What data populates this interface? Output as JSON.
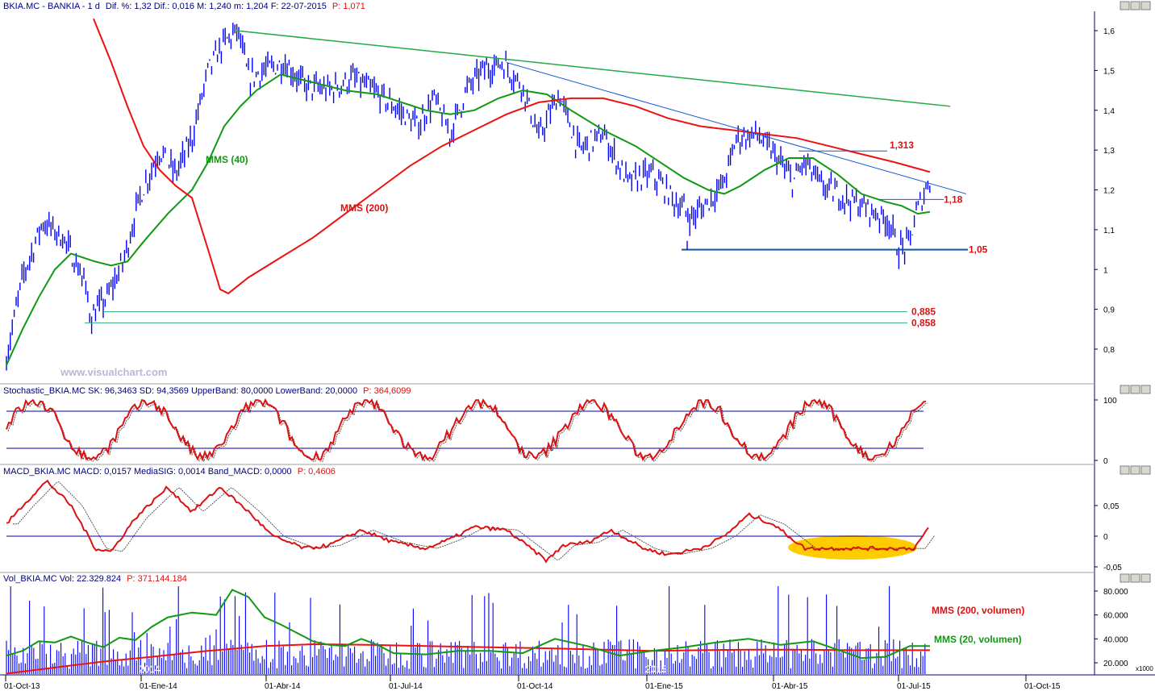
{
  "watermark": "www.visualchart.com",
  "colors": {
    "price": "#0000ff",
    "mms40": "#119911",
    "mms200": "#ee1111",
    "trend_green": "#22aa44",
    "trend_blue": "#1155dd",
    "level_blue": "#1155aa",
    "level_teal": "#33aa88",
    "stoch": "#dd1111",
    "macd": "#dd1111",
    "volume": "#0000ff",
    "highlight": "#ffcc00"
  },
  "panels": {
    "price": {
      "header_symbol": "BKIA.MC - BANKIA - 1 d",
      "header_stats": "Dif. %: 1,32  Dif.: 0,016  M: 1,240  m: 1,204  F: 22-07-2015",
      "header_p": "P: 1,071",
      "mms40_label": "MMS (40)",
      "mms200_label": "MMS (200)"
    },
    "stochastic": {
      "header": "Stochastic_BKIA.MC SK: 96,3463 SD: 94,3569 UpperBand: 80,0000 LowerBand: 20,0000",
      "header_p": "P: 364,6099"
    },
    "macd": {
      "header": "MACD_BKIA.MC MACD: 0,0157 MediaSIG: 0,0014 Band_MACD: 0,0000",
      "header_p": "P: 0,4606"
    },
    "volume": {
      "header": "Vol_BKIA.MC Vol: 22.329.824",
      "header_p": "P: 371.144.184",
      "mms200_label": "MMS (200, volumen)",
      "mms20_label": "MMS (20, volumen)",
      "multiplier": "x1000"
    }
  },
  "chart_data": [
    {
      "type": "line",
      "panel": "price",
      "x_tick_labels": [
        "01-Oct-13",
        "01-Ene-14",
        "01-Abr-14",
        "01-Jul-14",
        "01-Oct-14",
        "01-Ene-15",
        "01-Abr-15",
        "01-Jul-15",
        "01-Oct-15"
      ],
      "year_labels": [
        "2014",
        "2015"
      ],
      "y_tick_labels": [
        "1,6",
        "1,5",
        "1,4",
        "1,3",
        "1,2",
        "1,1",
        "1",
        "0,9",
        "0,8"
      ],
      "ylim": [
        0.72,
        1.65
      ],
      "series": [
        {
          "name": "MMS (40)",
          "values": [
            [
              0,
              0.76
            ],
            [
              20,
              0.85
            ],
            [
              40,
              0.93
            ],
            [
              60,
              1.0
            ],
            [
              80,
              1.04
            ],
            [
              110,
              1.02
            ],
            [
              130,
              1.01
            ],
            [
              150,
              1.02
            ],
            [
              170,
              1.07
            ],
            [
              200,
              1.14
            ],
            [
              230,
              1.2
            ],
            [
              250,
              1.27
            ],
            [
              270,
              1.36
            ],
            [
              290,
              1.41
            ],
            [
              310,
              1.45
            ],
            [
              340,
              1.49
            ],
            [
              380,
              1.47
            ],
            [
              420,
              1.45
            ],
            [
              460,
              1.44
            ],
            [
              490,
              1.42
            ],
            [
              520,
              1.4
            ],
            [
              550,
              1.39
            ],
            [
              580,
              1.4
            ],
            [
              610,
              1.43
            ],
            [
              640,
              1.45
            ],
            [
              670,
              1.44
            ],
            [
              700,
              1.4
            ],
            [
              740,
              1.35
            ],
            [
              780,
              1.31
            ],
            [
              810,
              1.27
            ],
            [
              840,
              1.23
            ],
            [
              870,
              1.2
            ],
            [
              890,
              1.19
            ],
            [
              910,
              1.21
            ],
            [
              940,
              1.25
            ],
            [
              970,
              1.28
            ],
            [
              1000,
              1.28
            ],
            [
              1030,
              1.24
            ],
            [
              1060,
              1.19
            ],
            [
              1090,
              1.17
            ],
            [
              1110,
              1.16
            ],
            [
              1130,
              1.14
            ],
            [
              1145,
              1.145
            ]
          ]
        },
        {
          "name": "MMS (200)",
          "values": [
            [
              108,
              1.63
            ],
            [
              130,
              1.52
            ],
            [
              150,
              1.41
            ],
            [
              170,
              1.31
            ],
            [
              190,
              1.25
            ],
            [
              210,
              1.21
            ],
            [
              230,
              1.18
            ],
            [
              250,
              1.05
            ],
            [
              265,
              0.95
            ],
            [
              275,
              0.94
            ],
            [
              300,
              0.98
            ],
            [
              340,
              1.03
            ],
            [
              380,
              1.08
            ],
            [
              420,
              1.14
            ],
            [
              460,
              1.2
            ],
            [
              500,
              1.26
            ],
            [
              540,
              1.31
            ],
            [
              580,
              1.35
            ],
            [
              620,
              1.39
            ],
            [
              660,
              1.42
            ],
            [
              700,
              1.43
            ],
            [
              740,
              1.43
            ],
            [
              780,
              1.41
            ],
            [
              820,
              1.38
            ],
            [
              860,
              1.36
            ],
            [
              900,
              1.35
            ],
            [
              940,
              1.34
            ],
            [
              980,
              1.33
            ],
            [
              1020,
              1.31
            ],
            [
              1060,
              1.29
            ],
            [
              1100,
              1.27
            ],
            [
              1145,
              1.245
            ]
          ]
        }
      ],
      "trendlines": [
        {
          "from": [
            285,
            1.6
          ],
          "to": [
            1170,
            1.41
          ]
        },
        {
          "from": [
            620,
            1.52
          ],
          "to": [
            1190,
            1.19
          ]
        }
      ],
      "levels": [
        {
          "label": "1,313",
          "value": 1.31
        },
        {
          "label": "1,18",
          "value": 1.18
        },
        {
          "label": "1,05",
          "value": 1.05
        },
        {
          "label": "0,885",
          "value": 0.89
        },
        {
          "label": "0,858",
          "value": 0.86
        }
      ]
    },
    {
      "type": "line",
      "panel": "stochastic",
      "y_tick_labels": [
        "100",
        "0"
      ],
      "ylim": [
        0,
        100
      ],
      "bands": [
        80,
        20
      ]
    },
    {
      "type": "line",
      "panel": "macd",
      "y_tick_labels": [
        "0,05",
        "0",
        "-0,05"
      ],
      "ylim": [
        -0.055,
        0.095
      ],
      "series": [
        {
          "name": "MACD",
          "values": [
            [
              0,
              0.02
            ],
            [
              20,
              0.05
            ],
            [
              50,
              0.09
            ],
            [
              80,
              0.05
            ],
            [
              110,
              -0.02
            ],
            [
              130,
              -0.025
            ],
            [
              160,
              0.03
            ],
            [
              200,
              0.08
            ],
            [
              230,
              0.04
            ],
            [
              265,
              0.08
            ],
            [
              300,
              0.04
            ],
            [
              330,
              0.0
            ],
            [
              370,
              -0.02
            ],
            [
              400,
              -0.015
            ],
            [
              440,
              0.01
            ],
            [
              480,
              -0.01
            ],
            [
              520,
              -0.02
            ],
            [
              550,
              -0.005
            ],
            [
              580,
              0.015
            ],
            [
              620,
              0.01
            ],
            [
              650,
              -0.02
            ],
            [
              670,
              -0.04
            ],
            [
              690,
              -0.015
            ],
            [
              720,
              -0.01
            ],
            [
              750,
              0.01
            ],
            [
              790,
              -0.02
            ],
            [
              820,
              -0.03
            ],
            [
              860,
              -0.02
            ],
            [
              890,
              0.0
            ],
            [
              920,
              0.035
            ],
            [
              950,
              0.02
            ],
            [
              990,
              -0.02
            ],
            [
              1030,
              -0.02
            ],
            [
              1060,
              -0.02
            ],
            [
              1100,
              -0.02
            ],
            [
              1125,
              -0.02
            ],
            [
              1145,
              0.016
            ]
          ]
        }
      ]
    },
    {
      "type": "bar",
      "panel": "volume",
      "y_tick_labels": [
        "80.000",
        "60.000",
        "40.000",
        "20.000"
      ],
      "ylim": [
        10000,
        85000
      ]
    }
  ]
}
